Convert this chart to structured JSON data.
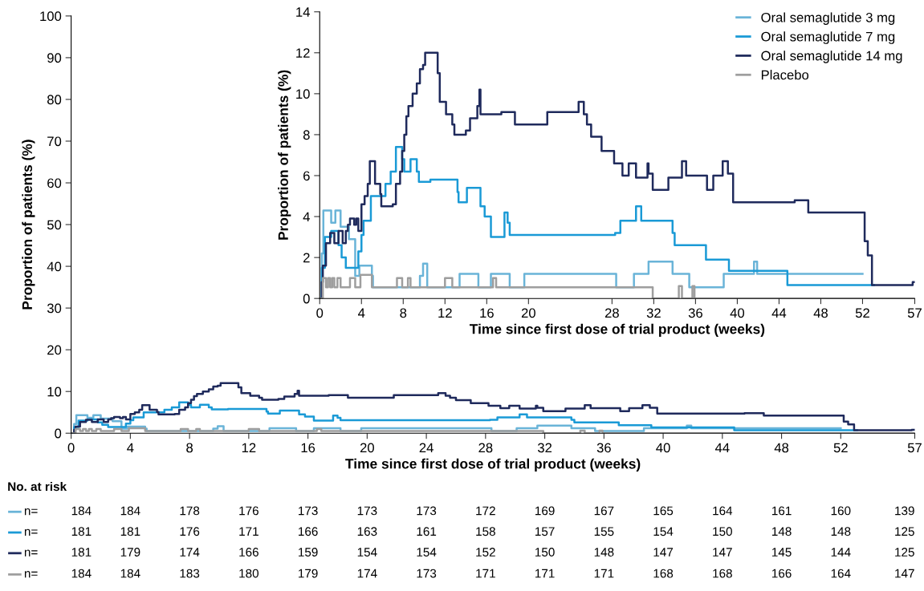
{
  "chart_data": [
    {
      "type": "step",
      "xlabel": "Time since first dose of trial product (weeks)",
      "ylabel": "Proportion of patients (%)",
      "xlim": [
        0,
        57
      ],
      "xticks": [
        0,
        4,
        8,
        12,
        16,
        20,
        24,
        28,
        32,
        36,
        40,
        44,
        48,
        52,
        57
      ],
      "ylim": [
        0,
        100
      ],
      "yticks": [
        0,
        10,
        20,
        30,
        40,
        50,
        60,
        70,
        80,
        90,
        100
      ],
      "grid": false,
      "legend": false,
      "annotations": [
        "No. at risk",
        "n=",
        "184",
        "184",
        "178",
        "176",
        "173",
        "173",
        "173",
        "172",
        "169",
        "167",
        "165",
        "164",
        "161",
        "160",
        "139",
        "n=",
        "181",
        "181",
        "176",
        "171",
        "166",
        "163",
        "161",
        "158",
        "157",
        "155",
        "154",
        "150",
        "148",
        "148",
        "125",
        "n=",
        "181",
        "179",
        "174",
        "166",
        "159",
        "154",
        "154",
        "152",
        "150",
        "148",
        "147",
        "147",
        "145",
        "144",
        "125",
        "n=",
        "184",
        "184",
        "183",
        "180",
        "179",
        "174",
        "173",
        "171",
        "171",
        "171",
        "168",
        "168",
        "166",
        "164",
        "147"
      ],
      "series": [
        {
          "color": "#6ab4d8",
          "x": [
            0,
            0.2,
            0.35,
            1.1,
            1.5,
            2.0,
            2.8,
            3.4,
            3.8,
            5.0,
            5.1,
            9.6,
            9.9,
            10.3,
            13.4,
            15.2,
            16.4,
            18.2,
            19.6,
            28.4,
            30.1,
            31.5,
            33.8,
            35.4,
            38.7,
            41.6,
            41.9,
            52.0
          ],
          "values": [
            0,
            2.2,
            4.3,
            3.7,
            4.3,
            3.5,
            2.9,
            1.1,
            1.6,
            1.1,
            0.5,
            1.1,
            1.7,
            0.5,
            1.2,
            0.5,
            1.2,
            0.5,
            1.2,
            0.5,
            1.2,
            1.8,
            1.2,
            0.5,
            1.2,
            1.8,
            1.2,
            1.2
          ]
        },
        {
          "color": "#1a9ad6",
          "x": [
            0,
            0.2,
            0.5,
            1.1,
            1.8,
            2.1,
            2.5,
            3.7,
            4.0,
            4.2,
            4.9,
            6.3,
            6.8,
            7.3,
            7.9,
            8.1,
            8.7,
            9.3,
            9.5,
            10.6,
            13.2,
            13.3,
            14.1,
            15.4,
            15.8,
            16.4,
            17.7,
            18.0,
            18.2,
            28.3,
            28.8,
            30.3,
            30.8,
            33.8,
            34.0,
            37.0,
            39.2,
            44.8,
            53.1
          ],
          "values": [
            0,
            1.5,
            3.0,
            3.3,
            2.6,
            2.0,
            1.5,
            2.3,
            3.1,
            3.8,
            5.0,
            5.6,
            6.2,
            7.4,
            6.8,
            6.2,
            6.8,
            6.2,
            5.7,
            5.8,
            5.2,
            4.7,
            5.4,
            4.5,
            4.0,
            3.0,
            4.2,
            3.7,
            3.1,
            3.2,
            3.8,
            4.5,
            3.8,
            3.2,
            2.6,
            1.9,
            1.4,
            0.7,
            0.7
          ]
        },
        {
          "color": "#1f2a5c",
          "x": [
            0,
            0.2,
            0.3,
            0.6,
            1.0,
            1.4,
            1.8,
            2.2,
            2.5,
            2.7,
            2.9,
            3.3,
            3.5,
            3.7,
            4.0,
            4.3,
            4.6,
            4.8,
            5.3,
            5.8,
            5.9,
            7.0,
            7.3,
            7.7,
            7.9,
            8.1,
            8.3,
            8.5,
            8.9,
            9.3,
            9.6,
            9.9,
            10.1,
            11.3,
            11.5,
            12.1,
            12.7,
            12.9,
            14.0,
            14.4,
            15.1,
            15.3,
            15.4,
            17.4,
            18.7,
            21.8,
            24.8,
            25.3,
            25.6,
            26.0,
            27.0,
            28.2,
            29.0,
            29.6,
            30.3,
            31.4,
            31.5,
            31.9,
            33.4,
            34.7,
            35.1,
            37.1,
            37.7,
            38.6,
            39.1,
            39.6,
            45.5,
            46.8,
            52.2,
            52.5,
            52.9,
            56.8,
            57
          ],
          "values": [
            0,
            0.8,
            1.6,
            2.7,
            3.2,
            2.7,
            3.3,
            2.7,
            3.3,
            3.6,
            3.9,
            3.6,
            3.9,
            3.3,
            4.6,
            5.0,
            5.6,
            6.7,
            5.6,
            5.1,
            4.5,
            4.6,
            5.6,
            6.2,
            7.2,
            8.0,
            8.9,
            9.4,
            10.0,
            10.5,
            11.2,
            11.4,
            12.0,
            11.0,
            9.6,
            9.0,
            8.5,
            8.0,
            8.2,
            8.8,
            9.4,
            10.2,
            9.0,
            9.1,
            8.5,
            9.1,
            9.6,
            9.0,
            8.5,
            7.9,
            7.2,
            6.6,
            6.0,
            6.6,
            5.9,
            6.6,
            6.1,
            5.3,
            5.9,
            6.7,
            6.0,
            5.3,
            6.0,
            6.7,
            6.1,
            4.7,
            4.8,
            4.2,
            2.8,
            2.1,
            0.7,
            0.8,
            0.8
          ]
        },
        {
          "color": "#9e9e9e",
          "x": [
            0,
            0.3,
            0.6,
            0.8,
            1.0,
            1.2,
            1.4,
            1.7,
            2.0,
            2.9,
            3.4,
            3.9,
            5.0,
            7.4,
            7.9,
            8.45,
            8.7,
            12.0,
            12.7,
            16.6,
            16.9,
            31.9,
            34.4,
            34.7,
            35.7,
            35.9,
            57
          ],
          "values": [
            0,
            1.0,
            0.5,
            1.0,
            0.5,
            1.0,
            0.5,
            1.0,
            0.5,
            1.0,
            0.5,
            1.2,
            0.5,
            1.0,
            0.5,
            1.0,
            0.5,
            1.0,
            0.5,
            1.0,
            0.5,
            0,
            0.6,
            0,
            0.6,
            0,
            0
          ]
        }
      ]
    },
    {
      "type": "step",
      "xlabel": "Time since first dose of trial product (weeks)",
      "ylabel": "Proportion of patients (%)",
      "xlim": [
        0,
        57
      ],
      "xticks": [
        0,
        4,
        8,
        12,
        16,
        20,
        28,
        32,
        36,
        40,
        44,
        48,
        52,
        57
      ],
      "ylim": [
        0,
        14
      ],
      "yticks": [
        0,
        2,
        4,
        6,
        8,
        10,
        12,
        14
      ],
      "grid": false,
      "legend": "top right",
      "series": [
        {
          "name": "Oral semaglutide 3 mg",
          "color": "#6ab4d8",
          "x": [
            0,
            0.2,
            0.35,
            1.1,
            1.5,
            2.0,
            2.8,
            3.4,
            3.8,
            5.0,
            5.1,
            9.6,
            9.9,
            10.3,
            13.4,
            15.2,
            16.4,
            18.2,
            19.6,
            28.4,
            30.1,
            31.5,
            33.8,
            35.4,
            38.7,
            41.6,
            41.9,
            52.0
          ],
          "values": [
            0,
            2.2,
            4.3,
            3.7,
            4.3,
            3.5,
            2.9,
            1.1,
            1.6,
            1.1,
            0.55,
            1.1,
            1.7,
            0.55,
            1.2,
            0.55,
            1.2,
            0.55,
            1.2,
            0.55,
            1.2,
            1.8,
            1.2,
            0.55,
            1.2,
            1.8,
            1.2,
            1.2
          ]
        },
        {
          "name": "Oral semaglutide 7 mg",
          "color": "#1a9ad6",
          "x": [
            0,
            0.2,
            0.5,
            1.1,
            1.8,
            2.1,
            2.5,
            3.7,
            4.0,
            4.2,
            4.9,
            6.3,
            6.8,
            7.3,
            7.9,
            8.1,
            8.7,
            9.3,
            9.5,
            10.6,
            13.2,
            13.3,
            14.1,
            15.4,
            15.8,
            16.4,
            17.7,
            18.0,
            18.2,
            28.3,
            28.8,
            30.3,
            30.8,
            33.8,
            34.0,
            37.0,
            39.2,
            44.8,
            53.1
          ],
          "values": [
            0,
            1.5,
            3.0,
            3.3,
            2.6,
            2.0,
            1.5,
            2.3,
            3.1,
            3.8,
            5.0,
            5.6,
            6.2,
            7.4,
            6.8,
            6.2,
            6.8,
            6.2,
            5.7,
            5.8,
            5.2,
            4.7,
            5.4,
            4.5,
            4.0,
            3.0,
            4.2,
            3.7,
            3.1,
            3.2,
            3.8,
            4.5,
            3.8,
            3.2,
            2.6,
            1.9,
            1.35,
            0.65,
            0.65
          ]
        },
        {
          "name": "Oral semaglutide 14 mg",
          "color": "#1f2a5c",
          "x": [
            0,
            0.2,
            0.3,
            0.6,
            1.0,
            1.4,
            1.8,
            2.2,
            2.5,
            2.7,
            2.9,
            3.3,
            3.5,
            3.7,
            4.0,
            4.3,
            4.6,
            4.8,
            5.3,
            5.8,
            5.9,
            7.0,
            7.3,
            7.7,
            7.9,
            8.1,
            8.3,
            8.5,
            8.9,
            9.3,
            9.6,
            9.9,
            10.1,
            11.3,
            11.5,
            12.1,
            12.7,
            12.9,
            14.0,
            14.4,
            15.1,
            15.3,
            15.4,
            17.4,
            18.7,
            21.8,
            24.8,
            25.3,
            25.6,
            26.0,
            27.0,
            28.2,
            29.0,
            29.6,
            30.3,
            31.4,
            31.5,
            31.9,
            33.4,
            34.7,
            35.1,
            37.1,
            37.7,
            38.6,
            39.1,
            39.6,
            45.5,
            46.8,
            52.2,
            52.5,
            52.9,
            56.8,
            57
          ],
          "values": [
            0,
            0.8,
            1.6,
            2.7,
            3.2,
            2.7,
            3.3,
            2.7,
            3.3,
            3.6,
            3.9,
            3.6,
            3.9,
            3.3,
            4.6,
            5.0,
            5.6,
            6.7,
            5.6,
            5.1,
            4.5,
            4.6,
            5.6,
            6.2,
            7.2,
            8.0,
            8.9,
            9.4,
            10.0,
            10.5,
            11.2,
            11.4,
            12.0,
            11.0,
            9.6,
            9.0,
            8.5,
            8.0,
            8.2,
            8.8,
            9.4,
            10.2,
            9.0,
            9.1,
            8.5,
            9.1,
            9.6,
            9.0,
            8.5,
            7.9,
            7.2,
            6.6,
            6.0,
            6.6,
            5.9,
            6.6,
            6.1,
            5.3,
            5.9,
            6.7,
            6.0,
            5.3,
            6.0,
            6.7,
            6.1,
            4.7,
            4.8,
            4.2,
            2.8,
            2.1,
            0.65,
            0.8,
            0.8
          ]
        },
        {
          "name": "Placebo",
          "color": "#9e9e9e",
          "x": [
            0,
            0.3,
            0.6,
            0.8,
            1.0,
            1.2,
            1.4,
            1.7,
            2.0,
            2.9,
            3.4,
            3.9,
            5.0,
            7.4,
            7.9,
            8.45,
            8.7,
            12.0,
            12.7,
            16.6,
            16.9,
            31.9,
            34.4,
            34.7,
            35.7,
            35.9,
            57
          ],
          "values": [
            0,
            1.0,
            0.55,
            1.0,
            0.55,
            1.0,
            0.55,
            1.0,
            0.55,
            1.0,
            0.55,
            1.15,
            0.55,
            1.0,
            0.55,
            1.0,
            0.55,
            1.0,
            0.55,
            1.0,
            0.55,
            0,
            0.6,
            0,
            0.6,
            0,
            0
          ]
        }
      ]
    }
  ]
}
